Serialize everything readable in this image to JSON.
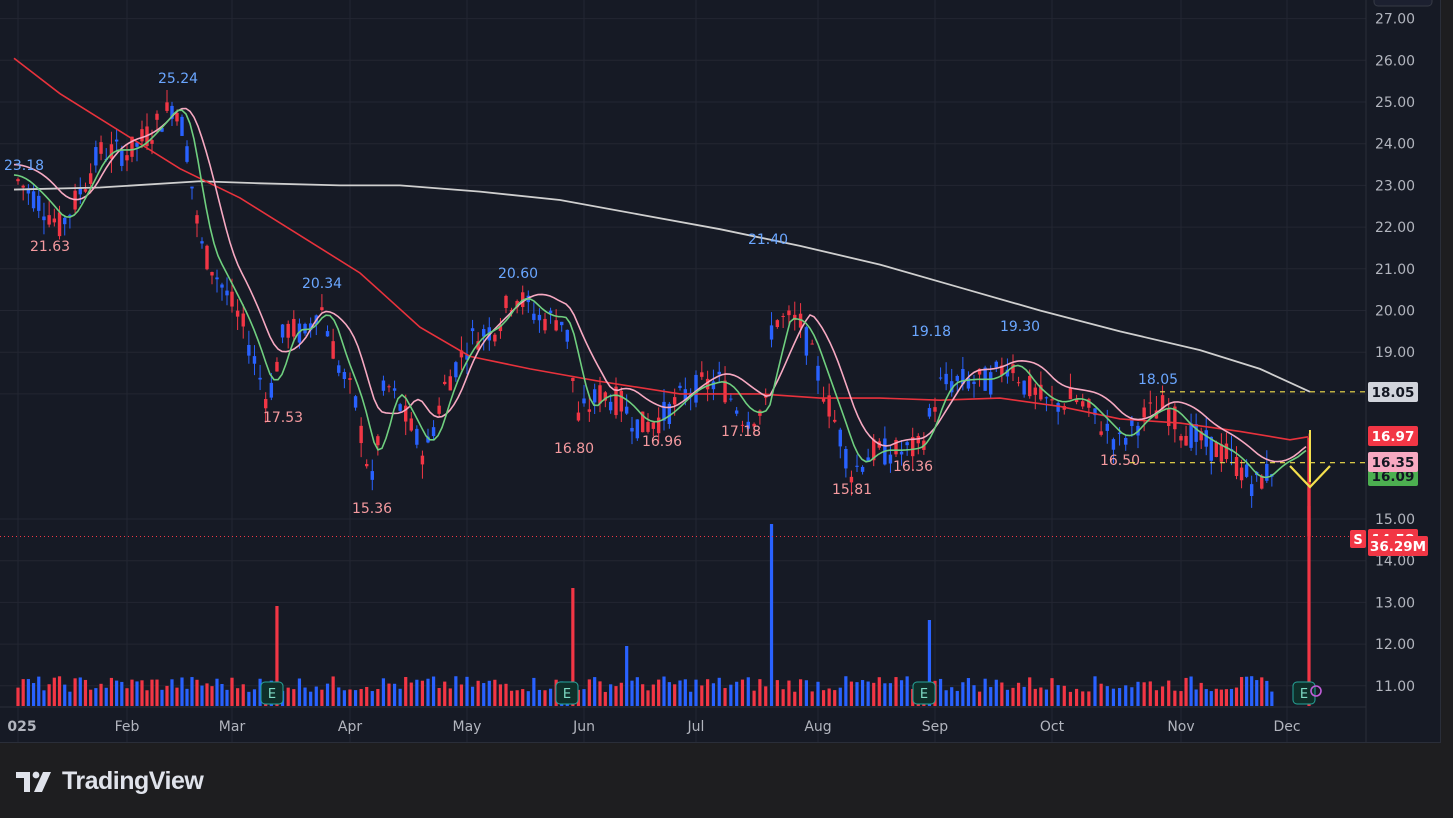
{
  "brand": {
    "name": "TradingView",
    "logo_icon": "tradingview-logo-icon"
  },
  "chart_data": {
    "type": "candlestick",
    "title": "",
    "timeframe": "daily",
    "x_labels": [
      "025",
      "Feb",
      "Mar",
      "Apr",
      "May",
      "Jun",
      "Jul",
      "Aug",
      "Sep",
      "Oct",
      "Nov",
      "Dec"
    ],
    "y_ticks": [
      "27.00",
      "26.00",
      "25.00",
      "24.00",
      "23.00",
      "22.00",
      "21.00",
      "20.00",
      "19.00",
      "18.00",
      "15.00",
      "14.00",
      "13.00",
      "12.00",
      "11.00"
    ],
    "ylim": [
      10.5,
      27.3
    ],
    "grid": true,
    "colors": {
      "up": "#2962ff",
      "down": "#f23645",
      "background": "#161a25",
      "grid": "#232632",
      "text": "#b2b5be",
      "sma20": "#f7a9c2",
      "sma10": "#6fcf7f",
      "sma50": "#e8323c",
      "sma200": "#cfcfcf"
    },
    "price_markers": [
      {
        "label": "25.24",
        "value": 25.24,
        "kind": "high"
      },
      {
        "label": "23.18",
        "value": 23.18,
        "kind": "high"
      },
      {
        "label": "21.63",
        "value": 21.63,
        "kind": "low"
      },
      {
        "label": "20.34",
        "value": 20.34,
        "kind": "high"
      },
      {
        "label": "17.53",
        "value": 17.53,
        "kind": "low"
      },
      {
        "label": "15.36",
        "value": 15.36,
        "kind": "low"
      },
      {
        "label": "20.60",
        "value": 20.6,
        "kind": "high"
      },
      {
        "label": "16.80",
        "value": 16.8,
        "kind": "low"
      },
      {
        "label": "16.96",
        "value": 16.96,
        "kind": "low"
      },
      {
        "label": "17.18",
        "value": 17.18,
        "kind": "low"
      },
      {
        "label": "21.40",
        "value": 21.4,
        "kind": "high"
      },
      {
        "label": "15.81",
        "value": 15.81,
        "kind": "low"
      },
      {
        "label": "16.36",
        "value": 16.36,
        "kind": "low"
      },
      {
        "label": "19.18",
        "value": 19.18,
        "kind": "high"
      },
      {
        "label": "19.30",
        "value": 19.3,
        "kind": "high"
      },
      {
        "label": "18.05",
        "value": 18.05,
        "kind": "high"
      },
      {
        "label": "16.50",
        "value": 16.5,
        "kind": "low"
      }
    ],
    "axis_badges": [
      {
        "label": "18.05",
        "value": 18.05,
        "bg": "#d1d4dc",
        "fg": "#131722"
      },
      {
        "label": "16.97",
        "value": 16.97,
        "bg": "#f23645",
        "fg": "#ffffff"
      },
      {
        "label": "16.35",
        "value": 16.35,
        "bg": "#f7a9c2",
        "fg": "#131722"
      },
      {
        "label": "16.09",
        "value": 16.09,
        "bg": "#4caf50",
        "fg": "#131722"
      },
      {
        "label": "14.58",
        "value": 14.58,
        "bg": "#f23645",
        "fg": "#ffffff"
      },
      {
        "label": "36.29M",
        "value": 14.58,
        "bg": "#f23645",
        "fg": "#ffffff"
      }
    ],
    "flag_text": "S",
    "earnings_marker_text": "E",
    "earnings_months": [
      "Mar",
      "May",
      "Aug",
      "Dec"
    ],
    "horizontal_levels": [
      18.05,
      16.35
    ],
    "last_close": 14.58,
    "last_volume": "36.29M",
    "moving_averages": [
      {
        "period": 200,
        "color": "#cfcfcf"
      },
      {
        "period": 50,
        "color": "#e8323c"
      },
      {
        "period": 20,
        "color": "#f7a9c2"
      },
      {
        "period": 10,
        "color": "#6fcf7f"
      }
    ]
  }
}
